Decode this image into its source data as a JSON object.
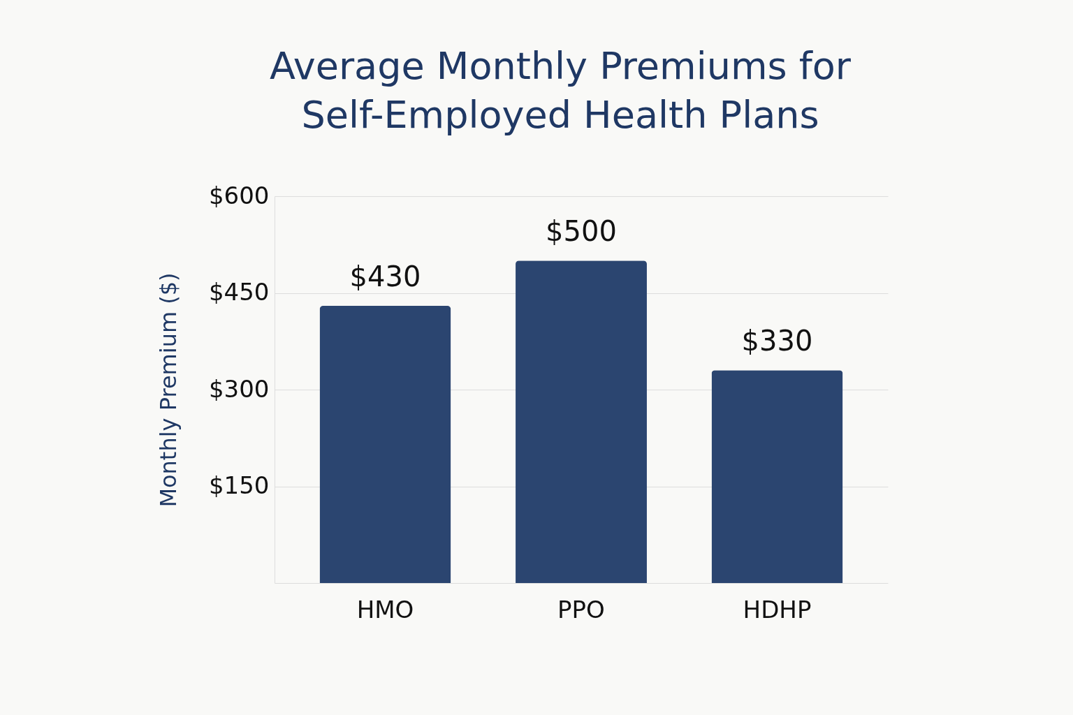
{
  "chart_data": {
    "type": "bar",
    "title": "Average Monthly Premiums for Self-Employed Health Plans",
    "ylabel": "Monthly Premium ($)",
    "categories": [
      "HMO",
      "PPO",
      "HDHP"
    ],
    "values": [
      430,
      500,
      330
    ],
    "color": "#2b4570",
    "value_labels": [
      "$430",
      "$500",
      "$330"
    ],
    "ylim": [
      0,
      600
    ],
    "yticks": [
      {
        "value": 150,
        "label": "$150"
      },
      {
        "value": 300,
        "label": "$300"
      },
      {
        "value": 450,
        "label": "$450"
      },
      {
        "value": 600,
        "label": "$600"
      }
    ],
    "grid": "y"
  }
}
